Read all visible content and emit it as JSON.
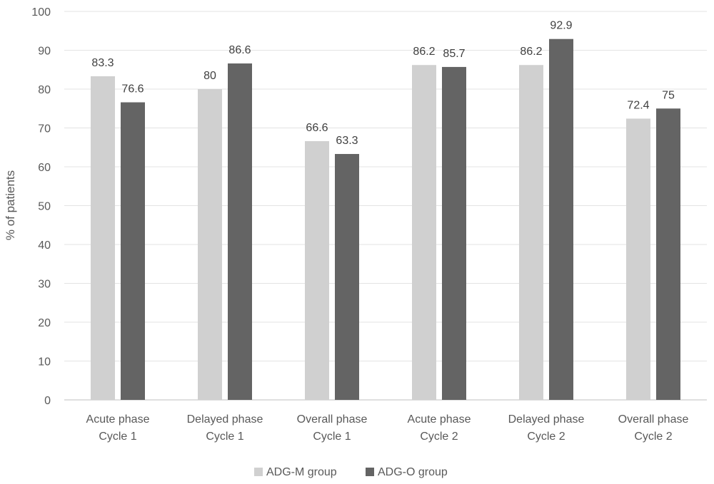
{
  "chart_data": {
    "type": "bar",
    "title": "",
    "xlabel": "",
    "ylabel": "% of patients",
    "ylim": [
      0,
      100
    ],
    "yticks": [
      0,
      10,
      20,
      30,
      40,
      50,
      60,
      70,
      80,
      90,
      100
    ],
    "grid": true,
    "legend_position": "bottom",
    "categories": [
      [
        "Acute phase",
        "Cycle 1"
      ],
      [
        "Delayed phase",
        "Cycle 1"
      ],
      [
        "Overall phase",
        "Cycle 1"
      ],
      [
        "Acute phase",
        "Cycle 2"
      ],
      [
        "Delayed phase",
        "Cycle 2"
      ],
      [
        "Overall phase",
        "Cycle 2"
      ]
    ],
    "series": [
      {
        "name": "ADG-M group",
        "color": "#d0d0d0",
        "values": [
          83.3,
          80,
          66.6,
          86.2,
          86.2,
          72.4
        ]
      },
      {
        "name": "ADG-O group",
        "color": "#646464",
        "values": [
          76.6,
          86.6,
          63.3,
          85.7,
          92.9,
          75
        ]
      }
    ]
  }
}
